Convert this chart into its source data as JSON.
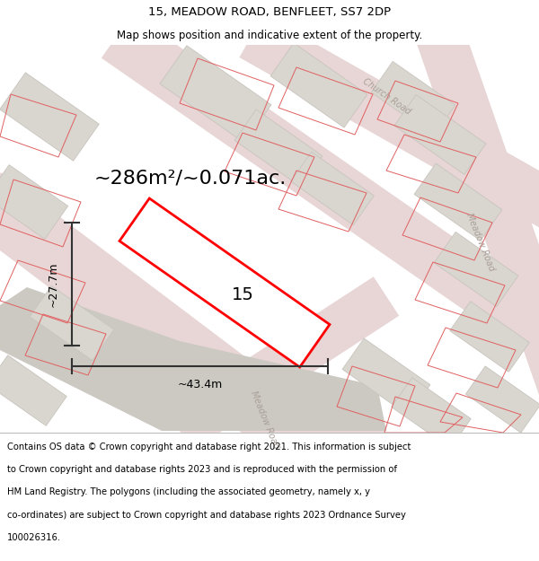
{
  "title": "15, MEADOW ROAD, BENFLEET, SS7 2DP",
  "subtitle": "Map shows position and indicative extent of the property.",
  "area_text": "~286m²/~0.071ac.",
  "width_label": "~43.4m",
  "height_label": "~27.7m",
  "plot_number": "15",
  "footer_line1": "Contains OS data © Crown copyright and database right 2021. This information is subject",
  "footer_line2": "to Crown copyright and database rights 2023 and is reproduced with the permission of",
  "footer_line3": "HM Land Registry. The polygons (including the associated geometry, namely x, y",
  "footer_line4": "co-ordinates) are subject to Crown copyright and database rights 2023 Ordnance Survey",
  "footer_line5": "100026316.",
  "map_bg": "#f2f0ed",
  "road_fill": "#e8d5d5",
  "block_fill": "#d9d5cf",
  "block_edge": "#c8c4be",
  "outline_color": "#e06060",
  "highlight_color": "#ff0000",
  "highlight_fill": "#ffffff",
  "dim_color": "#333333",
  "road_label_color": "#aaa098",
  "title_fontsize": 9.5,
  "subtitle_fontsize": 8.5,
  "area_fontsize": 16,
  "plot_fontsize": 14,
  "dim_fontsize": 9,
  "road_label_fontsize": 7,
  "footer_fontsize": 7.2
}
